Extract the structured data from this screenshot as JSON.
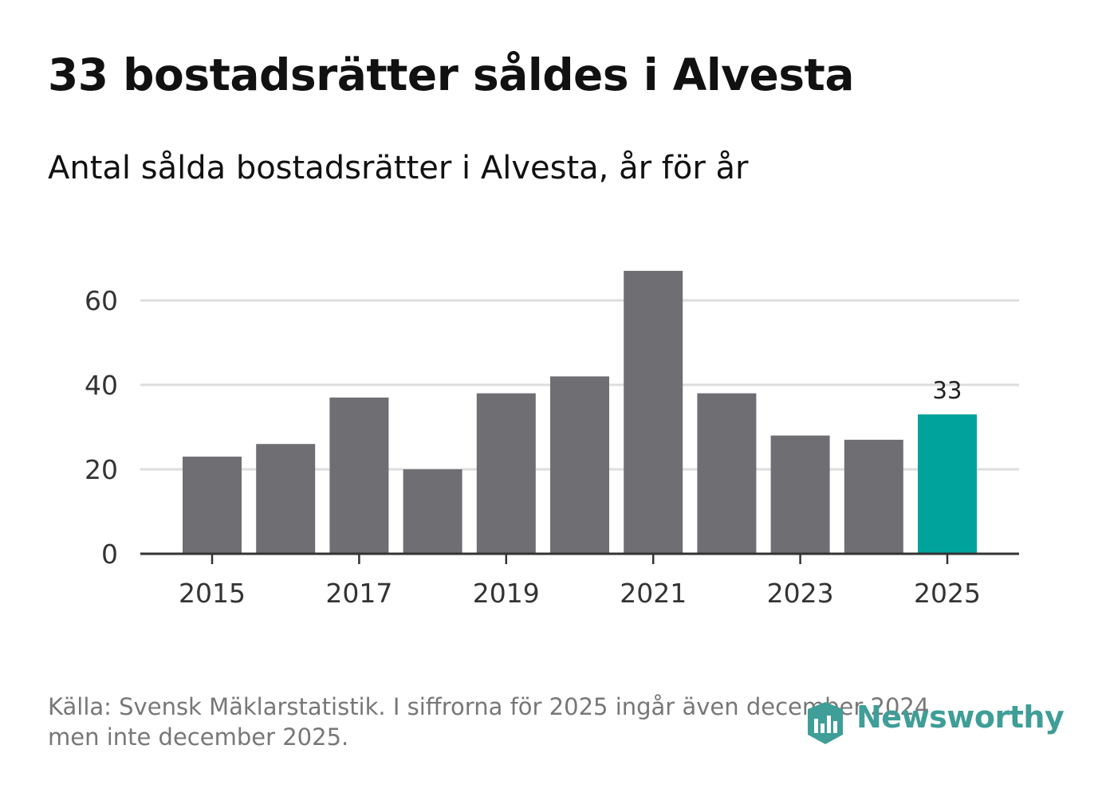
{
  "header": {
    "title": "33 bostadsrätter såldes i Alvesta",
    "subtitle": "Antal sålda bostadsrätter i Alvesta, år för år"
  },
  "footer": {
    "source_line1": "Källa: Svensk Mäklarstatistik. I siffrorna för 2025 ingår även december 2024,",
    "source_line2": "men inte december 2025.",
    "brand": "Newsworthy"
  },
  "colors": {
    "bar": "#6f6e73",
    "highlight": "#00a39b",
    "grid": "#dddddd",
    "axis": "#333333",
    "brand": "#3f9e97"
  },
  "chart_data": {
    "type": "bar",
    "title": "33 bostadsrätter såldes i Alvesta",
    "subtitle": "Antal sålda bostadsrätter i Alvesta, år för år",
    "xlabel": "",
    "ylabel": "",
    "categories": [
      "2015",
      "2016",
      "2017",
      "2018",
      "2019",
      "2020",
      "2021",
      "2022",
      "2023",
      "2024",
      "2025"
    ],
    "values": [
      23,
      26,
      37,
      20,
      38,
      42,
      67,
      38,
      28,
      27,
      33
    ],
    "highlight_index": 10,
    "highlight_label": "33",
    "ylim": [
      0,
      70
    ],
    "yticks": [
      0,
      20,
      40,
      60
    ],
    "xticks": [
      "2015",
      "2017",
      "2019",
      "2021",
      "2023",
      "2025"
    ],
    "grid": true
  }
}
